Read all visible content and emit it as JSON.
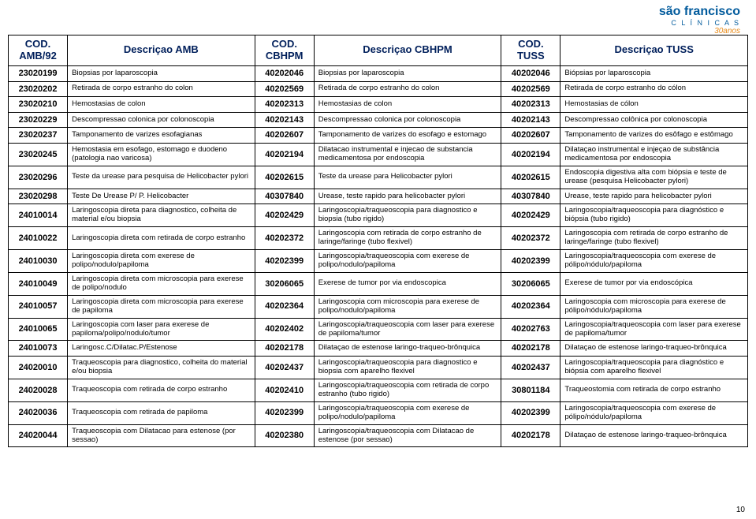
{
  "logo": {
    "main": "são francisco",
    "sub": "C L Í N I C A S",
    "tag": "30anos"
  },
  "headers": [
    "COD. AMB/92",
    "Descriçao AMB",
    "COD. CBHPM",
    "Descriçao CBHPM",
    "COD. TUSS",
    "Descriçao TUSS"
  ],
  "rows": [
    [
      "23020199",
      "Biopsias por laparoscopia",
      "40202046",
      "Biopsias por laparoscopia",
      "40202046",
      "Biópsias por laparoscopia"
    ],
    [
      "23020202",
      "Retirada de corpo estranho do colon",
      "40202569",
      "Retirada de corpo estranho do colon",
      "40202569",
      "Retirada de corpo estranho do cólon"
    ],
    [
      "23020210",
      "Hemostasias de colon",
      "40202313",
      "Hemostasias de colon",
      "40202313",
      "Hemostasias de cólon"
    ],
    [
      "23020229",
      "Descompressao colonica por colonoscopia",
      "40202143",
      "Descompressao colonica por colonoscopia",
      "40202143",
      "Descompressao colônica por colonoscopia"
    ],
    [
      "23020237",
      "Tamponamento de varizes esofagianas",
      "40202607",
      "Tamponamento de varizes do esofago e estomago",
      "40202607",
      "Tamponamento de varizes do esôfago e estômago"
    ],
    [
      "23020245",
      "Hemostasia em esofago, estomago e duodeno (patologia nao varicosa)",
      "40202194",
      "Dilatacao instrumental e injecao de substancia medicamentosa por endoscopia",
      "40202194",
      "Dilataçao instrumental e injeçao de substância medicamentosa por endoscopia"
    ],
    [
      "23020296",
      "Teste da urease para pesquisa de Helicobacter pylori",
      "40202615",
      "Teste da urease para Helicobacter pylori",
      "40202615",
      "Endoscopia digestiva alta com biópsia e teste de urease (pesquisa Helicobacter pylori)"
    ],
    [
      "23020298",
      "Teste De Urease P/ P. Helicobacter",
      "40307840",
      "Urease, teste rapido para helicobacter pylori",
      "40307840",
      "Urease, teste rapido para helicobacter pylori"
    ],
    [
      "24010014",
      "Laringoscopia direta para diagnostico, colheita de material e/ou biopsia",
      "40202429",
      "Laringoscopia/traqueoscopia para diagnostico e biopsia (tubo rigido)",
      "40202429",
      "Laringoscopia/traqueoscopia para diagnóstico e biópsia (tubo rigido)"
    ],
    [
      "24010022",
      "Laringoscopia direta com retirada de corpo estranho",
      "40202372",
      "Laringoscopia com retirada de corpo estranho de laringe/faringe (tubo flexivel)",
      "40202372",
      "Laringoscopia com retirada de corpo estranho de laringe/faringe (tubo flexivel)"
    ],
    [
      "24010030",
      "Laringoscopia direta com exerese de polipo/nodulo/papiloma",
      "40202399",
      "Laringoscopia/traqueoscopia com exerese de polipo/nodulo/papiloma",
      "40202399",
      "Laringoscopia/traqueoscopia com exerese de pólipo/nódulo/papiloma"
    ],
    [
      "24010049",
      "Laringoscopia direta com microscopia para exerese de polipo/nodulo",
      "30206065",
      "Exerese de tumor por via endoscopica",
      "30206065",
      "Exerese de tumor por via endoscópica"
    ],
    [
      "24010057",
      "Laringoscopia direta com microscopia para exerese de papiloma",
      "40202364",
      "Laringoscopia com microscopia para exerese de polipo/nodulo/papiloma",
      "40202364",
      "Laringoscopia com microscopia para exerese de pólipo/nódulo/papiloma"
    ],
    [
      "24010065",
      "Laringoscopia com laser para exerese de papiloma/polipo/nodulo/tumor",
      "40202402",
      "Laringoscopia/traqueoscopia com laser para exerese de papiloma/tumor",
      "40202763",
      "Laringoscopia/traqueoscopia com laser para exerese de papiloma/tumor"
    ],
    [
      "24010073",
      "Laringosc.C/Dilatac.P/Estenose",
      "40202178",
      "Dilataçao de estenose laringo-traqueo-brônquica",
      "40202178",
      "Dilataçao de estenose laringo-traqueo-brônquica"
    ],
    [
      "24020010",
      "Traqueoscopia para diagnostico, colheita do material e/ou biopsia",
      "40202437",
      "Laringoscopia/traqueoscopia para diagnostico e biopsia com aparelho flexivel",
      "40202437",
      "Laringoscopia/traqueoscopia para diagnóstico e biópsia com aparelho flexivel"
    ],
    [
      "24020028",
      "Traqueoscopia com retirada de corpo estranho",
      "40202410",
      "Laringoscopia/traqueoscopia com retirada de corpo estranho (tubo rigido)",
      "30801184",
      "Traqueostomia com retirada de corpo estranho"
    ],
    [
      "24020036",
      "Traqueoscopia com retirada de papiloma",
      "40202399",
      "Laringoscopia/traqueoscopia com exerese de polipo/nodulo/papiloma",
      "40202399",
      "Laringoscopia/traqueoscopia com exerese de pólipo/nódulo/papiloma"
    ],
    [
      "24020044",
      "Traqueoscopia com Dilatacao para estenose (por sessao)",
      "40202380",
      "Laringoscopia/traqueoscopia com Dilatacao de estenose (por sessao)",
      "40202178",
      "Dilataçao de estenose laringo-traqueo-brônquica"
    ]
  ],
  "page": "10"
}
